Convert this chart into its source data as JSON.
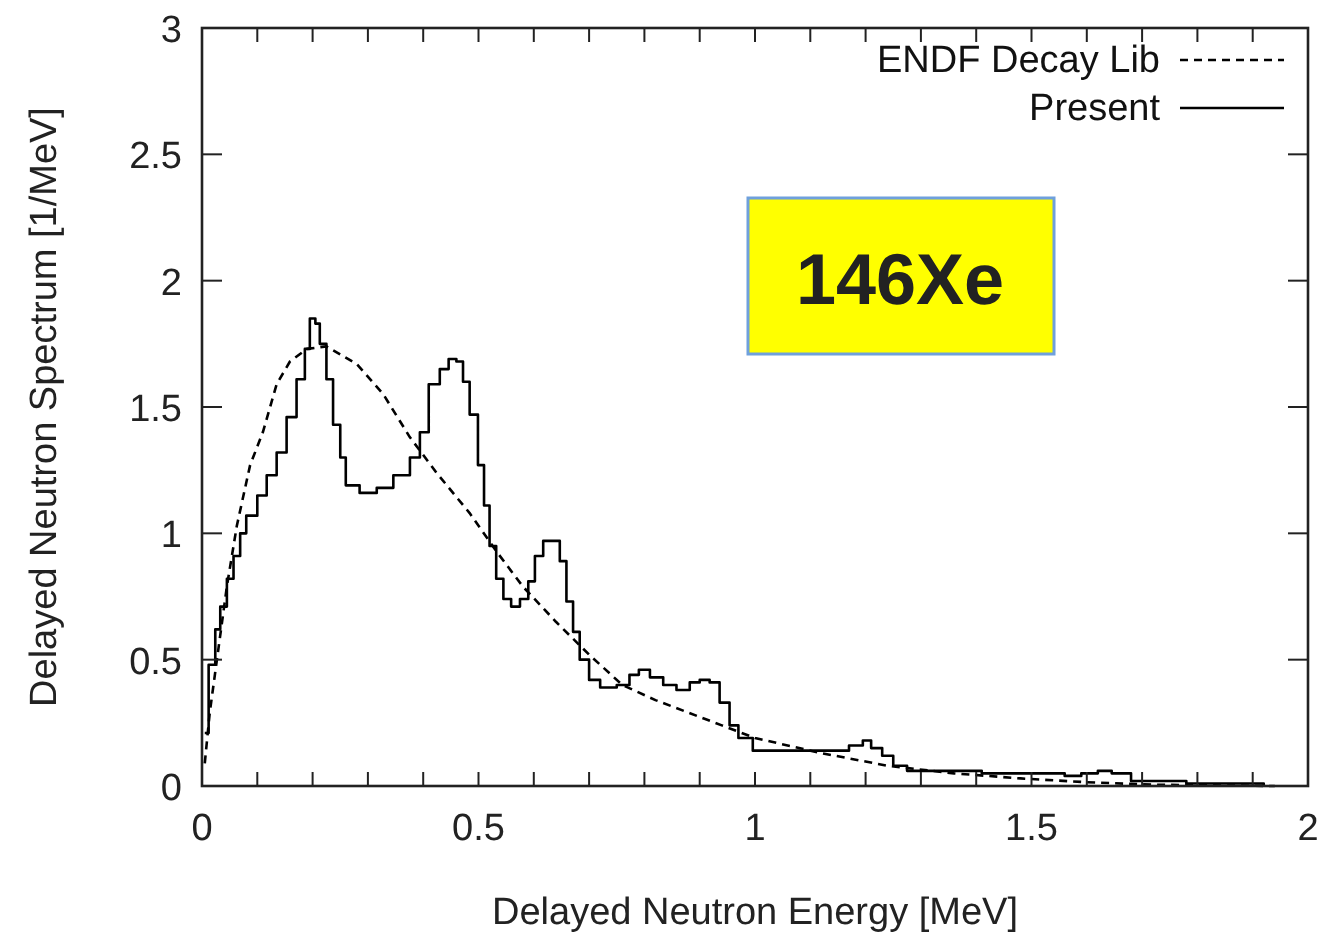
{
  "chart_data": {
    "type": "line",
    "xlabel": "Delayed Neutron Energy [MeV]",
    "ylabel": "Delayed Neutron Spectrum [1/MeV]",
    "xlim": [
      0,
      2
    ],
    "ylim": [
      0,
      3
    ],
    "xticks": [
      0,
      {
        "value": 0.1,
        "label": null
      },
      {
        "value": 0.2,
        "label": null
      },
      {
        "value": 0.3,
        "label": null
      },
      {
        "value": 0.4,
        "label": null
      },
      0.5,
      {
        "value": 0.6,
        "label": null
      },
      {
        "value": 0.7,
        "label": null
      },
      {
        "value": 0.8,
        "label": null
      },
      {
        "value": 0.9,
        "label": null
      },
      1,
      {
        "value": 1.1,
        "label": null
      },
      {
        "value": 1.2,
        "label": null
      },
      {
        "value": 1.3,
        "label": null
      },
      {
        "value": 1.4,
        "label": null
      },
      1.5,
      {
        "value": 1.6,
        "label": null
      },
      {
        "value": 1.7,
        "label": null
      },
      {
        "value": 1.8,
        "label": null
      },
      {
        "value": 1.9,
        "label": null
      },
      2
    ],
    "yticks": [
      0,
      0.5,
      1,
      1.5,
      2,
      2.5,
      3
    ],
    "grid": false,
    "legend": "top right",
    "annotations": [
      "146Xe"
    ],
    "series": [
      {
        "name": "ENDF Decay Lib",
        "line_style": "dashed",
        "color": "#000000",
        "x": [
          0.005,
          0.014,
          0.027,
          0.045,
          0.063,
          0.087,
          0.11,
          0.135,
          0.159,
          0.19,
          0.225,
          0.28,
          0.328,
          0.376,
          0.424,
          0.484,
          0.532,
          0.58,
          0.64,
          0.7,
          0.76,
          0.82,
          0.88,
          0.94,
          1.0,
          1.12,
          1.24,
          1.36,
          1.48,
          1.6,
          1.72,
          1.94
        ],
        "values": [
          0.09,
          0.29,
          0.5,
          0.79,
          1.03,
          1.27,
          1.4,
          1.59,
          1.68,
          1.73,
          1.74,
          1.67,
          1.55,
          1.38,
          1.24,
          1.08,
          0.93,
          0.79,
          0.65,
          0.52,
          0.4,
          0.34,
          0.29,
          0.24,
          0.19,
          0.13,
          0.08,
          0.05,
          0.03,
          0.015,
          0.005,
          0
        ]
      },
      {
        "name": "Present",
        "type": "step",
        "line_style": "solid",
        "color": "#000000",
        "x": [
          0.005,
          0.012,
          0.024,
          0.033,
          0.045,
          0.057,
          0.069,
          0.08,
          0.1,
          0.117,
          0.135,
          0.153,
          0.171,
          0.186,
          0.195,
          0.205,
          0.213,
          0.225,
          0.237,
          0.25,
          0.26,
          0.285,
          0.316,
          0.346,
          0.376,
          0.394,
          0.41,
          0.43,
          0.446,
          0.46,
          0.472,
          0.484,
          0.499,
          0.51,
          0.52,
          0.532,
          0.545,
          0.559,
          0.575,
          0.59,
          0.602,
          0.617,
          0.635,
          0.647,
          0.659,
          0.671,
          0.683,
          0.7,
          0.72,
          0.75,
          0.773,
          0.79,
          0.81,
          0.834,
          0.858,
          0.882,
          0.9,
          0.918,
          0.936,
          0.954,
          0.97,
          0.996,
          1.153,
          1.17,
          1.195,
          1.21,
          1.23,
          1.25,
          1.275,
          1.41,
          1.56,
          1.59,
          1.62,
          1.645,
          1.68,
          1.78,
          1.92
        ],
        "values": [
          0.21,
          0.48,
          0.62,
          0.71,
          0.82,
          0.91,
          1.0,
          1.07,
          1.15,
          1.23,
          1.32,
          1.46,
          1.61,
          1.73,
          1.85,
          1.83,
          1.75,
          1.61,
          1.43,
          1.3,
          1.19,
          1.16,
          1.18,
          1.23,
          1.3,
          1.4,
          1.59,
          1.65,
          1.69,
          1.68,
          1.6,
          1.47,
          1.27,
          1.11,
          0.95,
          0.82,
          0.74,
          0.71,
          0.74,
          0.81,
          0.91,
          0.97,
          0.97,
          0.89,
          0.73,
          0.61,
          0.5,
          0.42,
          0.39,
          0.4,
          0.44,
          0.46,
          0.43,
          0.4,
          0.38,
          0.41,
          0.42,
          0.41,
          0.33,
          0.24,
          0.19,
          0.14,
          0.14,
          0.16,
          0.18,
          0.15,
          0.12,
          0.08,
          0.06,
          0.05,
          0.04,
          0.05,
          0.06,
          0.05,
          0.02,
          0.01,
          0
        ]
      }
    ]
  }
}
